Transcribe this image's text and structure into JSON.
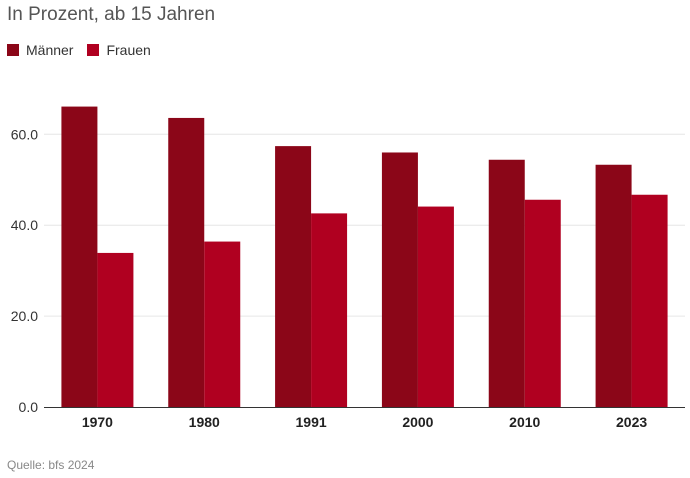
{
  "subtitle": "In Prozent, ab 15 Jahren",
  "source": "Quelle: bfs 2024",
  "colors": {
    "maenner": "#8b0618",
    "frauen": "#b00020",
    "grid": "#e6e6e6",
    "axis": "#333333"
  },
  "chart_data": {
    "type": "bar",
    "title": "",
    "xlabel": "",
    "ylabel": "",
    "categories": [
      "1970",
      "1980",
      "1991",
      "2000",
      "2010",
      "2023"
    ],
    "series": [
      {
        "name": "Männer",
        "values": [
          66.1,
          63.6,
          57.4,
          56.0,
          54.4,
          53.3
        ]
      },
      {
        "name": "Frauen",
        "values": [
          33.9,
          36.4,
          42.6,
          44.1,
          45.6,
          46.7
        ]
      }
    ],
    "yticks": [
      "0.0",
      "20.0",
      "40.0",
      "60.0"
    ],
    "ylim": [
      0,
      70
    ],
    "grid": true,
    "legend": "top-left"
  }
}
